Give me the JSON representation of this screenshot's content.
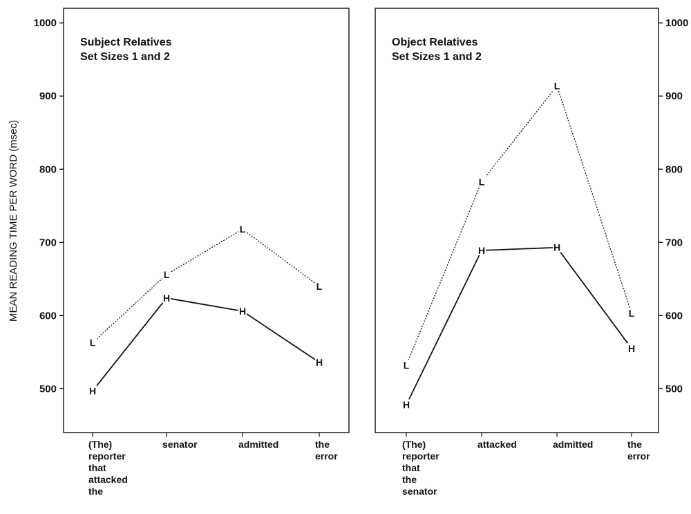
{
  "chart_data": {
    "type": "line",
    "ylabel": "MEAN READING TIME PER WORD (msec)",
    "ylim": [
      440,
      1020
    ],
    "yticks": [
      500,
      600,
      700,
      800,
      900,
      1000
    ],
    "grid": false,
    "legend": "none",
    "colors": {
      "line": "#111111",
      "background": "#ffffff"
    },
    "panels": [
      {
        "title_lines": [
          "Subject Relatives",
          "Set Sizes 1 and 2"
        ],
        "categories": [
          [
            "(The)",
            "reporter",
            "that",
            "attacked",
            "the"
          ],
          [
            "senator"
          ],
          [
            "admitted"
          ],
          [
            "the",
            "error"
          ]
        ],
        "series": [
          {
            "marker": "L",
            "style": "dotted",
            "values": [
              563,
              656,
              718,
              640
            ]
          },
          {
            "marker": "H",
            "style": "solid",
            "values": [
              497,
              624,
              606,
              536
            ]
          }
        ],
        "y_axis_side": "left"
      },
      {
        "title_lines": [
          "Object Relatives",
          "Set Sizes 1 and 2"
        ],
        "categories": [
          [
            "(The)",
            "reporter",
            "that",
            "the",
            "senator"
          ],
          [
            "attacked"
          ],
          [
            "admitted"
          ],
          [
            "the",
            "error"
          ]
        ],
        "series": [
          {
            "marker": "L",
            "style": "dotted",
            "values": [
              532,
              783,
              914,
              603
            ]
          },
          {
            "marker": "H",
            "style": "solid",
            "values": [
              478,
              689,
              693,
              555
            ]
          }
        ],
        "y_axis_side": "right"
      }
    ]
  }
}
